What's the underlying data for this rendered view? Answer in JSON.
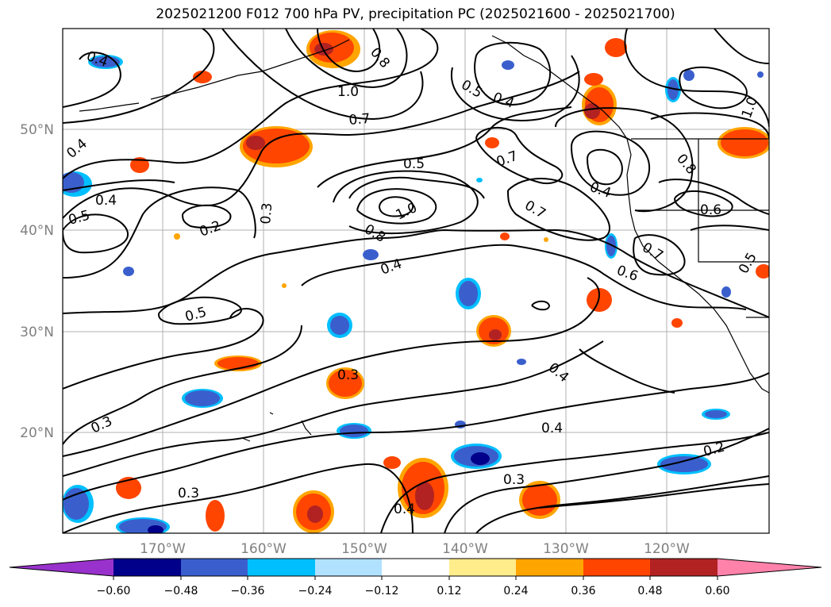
{
  "title": "2025021200 F012 700 hPa PV, precipitation PC (2025021600 - 2025021700)",
  "map": {
    "lat_labels": [
      "50°N",
      "40°N",
      "30°N",
      "20°N"
    ],
    "lon_labels": [
      "170°W",
      "160°W",
      "150°W",
      "140°W",
      "130°W",
      "120°W"
    ],
    "contour_labels": [
      "0.4",
      "0.8",
      "1.0",
      "0.5",
      "0.4",
      "0.7",
      "0.4",
      "0.5",
      "0.7",
      "0.4",
      "0.7",
      "0.8",
      "1.0",
      "0.4",
      "0.5",
      "0.3",
      "0.2",
      "0.5",
      "0.8",
      "1.0",
      "0.4",
      "0.6",
      "0.7",
      "0.6",
      "0.5",
      "0.3",
      "0.4",
      "0.3",
      "0.4",
      "0.2",
      "0.3",
      "0.3",
      "0.4"
    ]
  },
  "colorbar": {
    "ticks": [
      "−0.60",
      "−0.48",
      "−0.36",
      "−0.24",
      "−0.12",
      "0.12",
      "0.24",
      "0.36",
      "0.48",
      "0.60"
    ],
    "colors": [
      "#9932cc",
      "#00008b",
      "#3a5fcd",
      "#00bfff",
      "#b0e2ff",
      "#ffffff",
      "#ffec8b",
      "#ffa500",
      "#ff4500",
      "#b22222",
      "#ff82ab"
    ]
  }
}
